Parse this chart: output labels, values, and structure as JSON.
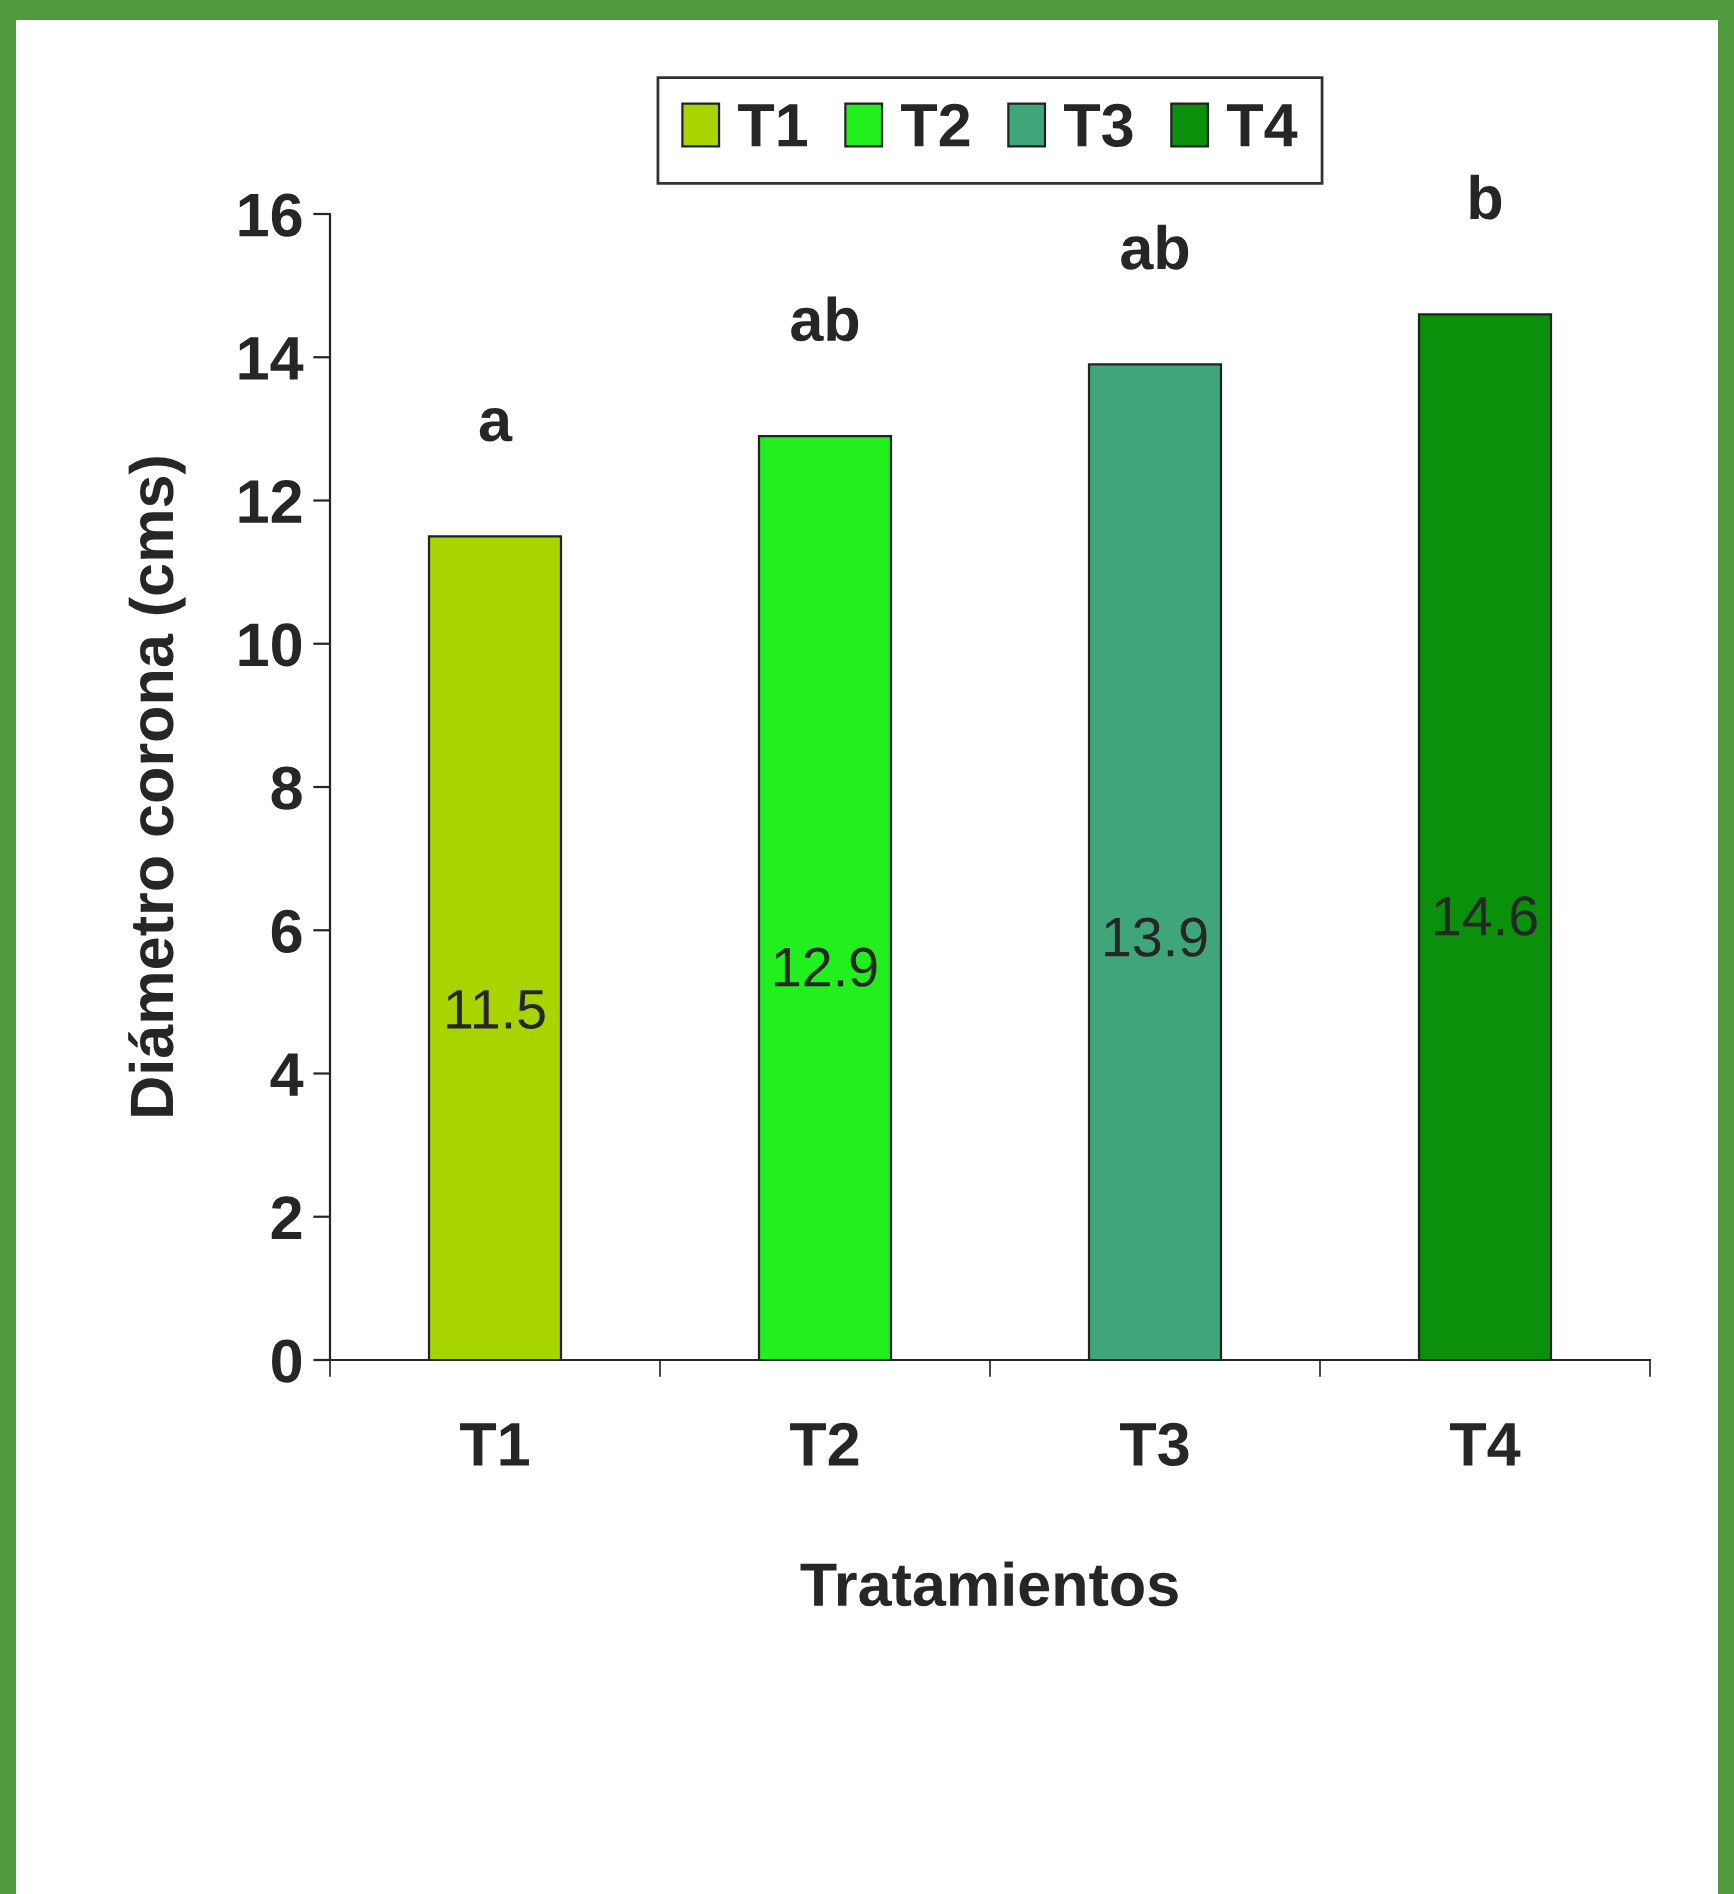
{
  "chart_data": {
    "type": "bar",
    "categories": [
      "T1",
      "T2",
      "T3",
      "T4"
    ],
    "series": [
      {
        "name": "T1",
        "color": "#a8d400",
        "values": [
          11.5,
          null,
          null,
          null
        ]
      },
      {
        "name": "T2",
        "color": "#22f01e",
        "values": [
          null,
          12.9,
          null,
          null
        ]
      },
      {
        "name": "T3",
        "color": "#3fa67a",
        "values": [
          null,
          null,
          13.9,
          null
        ]
      },
      {
        "name": "T4",
        "color": "#0a900a",
        "values": [
          null,
          null,
          null,
          14.6
        ]
      }
    ],
    "xlabel": "Tratamientos",
    "ylabel": "Diámetro corona (cms)",
    "ylim": [
      0,
      16
    ],
    "yticks": [
      0,
      2,
      4,
      6,
      8,
      10,
      12,
      14,
      16
    ],
    "data_labels": true,
    "legend": "top",
    "annotations": [
      "a",
      "ab",
      "ab",
      "b"
    ]
  }
}
